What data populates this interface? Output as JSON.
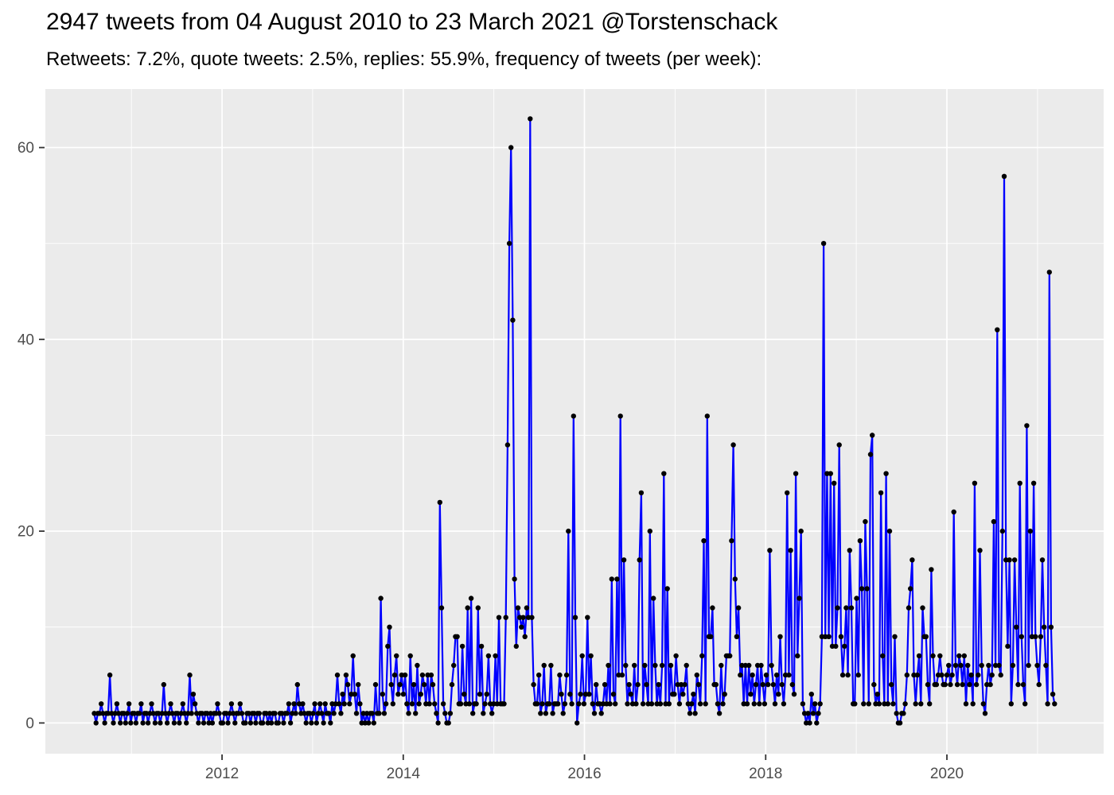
{
  "title": "2947 tweets from 04 August 2010 to 23 March 2021 @Torstenschack",
  "subtitle": "Retweets: 7.2%, quote tweets: 2.5%, replies: 55.9%, frequency of tweets (per week):",
  "colors": {
    "background": "#FFFFFF",
    "panel": "#EBEBEB",
    "grid": "#FFFFFF",
    "line": "#0000FF",
    "point": "#000000",
    "axis_text": "#4D4D4D",
    "tick_mark": "#333333",
    "title_text": "#000000"
  },
  "chart_data": {
    "type": "line",
    "title": "2947 tweets from 04 August 2010 to 23 March 2021 @Torstenschack",
    "subtitle": "Retweets: 7.2%, quote tweets: 2.5%, replies: 55.9%, frequency of tweets (per week):",
    "series_name": "tweets-per-week",
    "xlabel": "",
    "ylabel": "",
    "grid": true,
    "legend": "none",
    "x_ticks": [
      2012,
      2014,
      2016,
      2018,
      2020
    ],
    "x_minor_ticks": [
      2011,
      2013,
      2015,
      2017,
      2019,
      2021
    ],
    "y_ticks": [
      0,
      20,
      40,
      60
    ],
    "y_minor_ticks": [
      10,
      30,
      50
    ],
    "xlim": [
      2010.05,
      2021.73
    ],
    "ylim": [
      -3.2,
      66.1
    ],
    "x_start_year": 2010.59,
    "x_step_years": 0.019165,
    "values": [
      1,
      0,
      1,
      1,
      2,
      1,
      0,
      1,
      1,
      5,
      1,
      0,
      1,
      2,
      1,
      0,
      1,
      1,
      0,
      1,
      2,
      0,
      1,
      1,
      0,
      1,
      1,
      2,
      0,
      1,
      1,
      0,
      1,
      2,
      1,
      0,
      1,
      1,
      0,
      1,
      4,
      1,
      0,
      1,
      2,
      1,
      0,
      1,
      1,
      0,
      1,
      2,
      1,
      0,
      1,
      5,
      1,
      3,
      2,
      1,
      0,
      1,
      1,
      0,
      1,
      1,
      0,
      1,
      0,
      1,
      1,
      2,
      1,
      0,
      0,
      1,
      1,
      0,
      1,
      2,
      1,
      0,
      1,
      1,
      2,
      1,
      0,
      0,
      1,
      1,
      0,
      1,
      1,
      0,
      1,
      1,
      0,
      0,
      1,
      1,
      0,
      1,
      0,
      1,
      1,
      0,
      0,
      1,
      1,
      0,
      1,
      1,
      2,
      0,
      1,
      2,
      1,
      4,
      2,
      1,
      2,
      1,
      0,
      1,
      1,
      0,
      1,
      2,
      0,
      1,
      2,
      1,
      0,
      2,
      1,
      1,
      0,
      2,
      1,
      2,
      5,
      2,
      1,
      3,
      2,
      5,
      4,
      2,
      3,
      7,
      3,
      1,
      4,
      2,
      0,
      1,
      0,
      1,
      0,
      1,
      1,
      0,
      4,
      1,
      1,
      13,
      3,
      1,
      2,
      8,
      10,
      4,
      2,
      5,
      7,
      3,
      4,
      5,
      3,
      5,
      2,
      1,
      7,
      2,
      4,
      1,
      6,
      2,
      3,
      5,
      4,
      2,
      5,
      2,
      5,
      4,
      2,
      1,
      0,
      23,
      12,
      2,
      1,
      0,
      0,
      1,
      4,
      6,
      9,
      9,
      2,
      2,
      8,
      3,
      2,
      12,
      2,
      13,
      1,
      2,
      2,
      12,
      3,
      8,
      1,
      2,
      3,
      7,
      2,
      1,
      2,
      7,
      2,
      11,
      2,
      2,
      2,
      11,
      29,
      50,
      60,
      42,
      15,
      8,
      12,
      11,
      10,
      11,
      9,
      12,
      11,
      63,
      11,
      4,
      2,
      2,
      5,
      1,
      2,
      6,
      1,
      2,
      2,
      6,
      1,
      2,
      2,
      2,
      5,
      3,
      1,
      2,
      5,
      20,
      3,
      2,
      32,
      11,
      0,
      2,
      3,
      7,
      2,
      3,
      11,
      3,
      7,
      2,
      1,
      4,
      2,
      2,
      1,
      2,
      4,
      2,
      6,
      2,
      15,
      3,
      2,
      15,
      5,
      32,
      5,
      17,
      6,
      2,
      4,
      3,
      2,
      6,
      2,
      4,
      17,
      24,
      2,
      6,
      4,
      2,
      20,
      2,
      13,
      6,
      2,
      4,
      2,
      6,
      26,
      2,
      14,
      2,
      6,
      3,
      3,
      7,
      4,
      2,
      4,
      3,
      4,
      6,
      2,
      1,
      2,
      3,
      1,
      5,
      4,
      2,
      7,
      19,
      2,
      32,
      9,
      9,
      12,
      4,
      4,
      2,
      1,
      6,
      2,
      3,
      7,
      7,
      7,
      19,
      29,
      15,
      9,
      12,
      5,
      6,
      2,
      6,
      2,
      6,
      3,
      5,
      2,
      4,
      6,
      2,
      6,
      4,
      2,
      5,
      4,
      18,
      6,
      4,
      2,
      5,
      3,
      9,
      4,
      2,
      5,
      24,
      5,
      18,
      4,
      3,
      26,
      7,
      13,
      20,
      2,
      1,
      0,
      1,
      0,
      3,
      1,
      2,
      0,
      1,
      2,
      9,
      50,
      9,
      26,
      9,
      26,
      8,
      25,
      8,
      12,
      29,
      9,
      5,
      8,
      12,
      5,
      18,
      12,
      2,
      2,
      13,
      5,
      19,
      14,
      2,
      21,
      14,
      2,
      28,
      30,
      4,
      2,
      3,
      2,
      24,
      7,
      2,
      26,
      2,
      20,
      4,
      2,
      9,
      1,
      0,
      0,
      1,
      1,
      2,
      5,
      12,
      14,
      17,
      5,
      2,
      5,
      7,
      2,
      12,
      9,
      9,
      4,
      2,
      16,
      7,
      4,
      4,
      5,
      7,
      5,
      4,
      4,
      5,
      6,
      4,
      5,
      22,
      6,
      4,
      7,
      6,
      4,
      7,
      2,
      6,
      4,
      5,
      2,
      25,
      4,
      5,
      18,
      6,
      2,
      1,
      4,
      6,
      4,
      5,
      21,
      6,
      41,
      6,
      5,
      20,
      57,
      17,
      8,
      17,
      2,
      6,
      17,
      10,
      4,
      25,
      9,
      4,
      2,
      31,
      6,
      20,
      9,
      25,
      9,
      6,
      4,
      9,
      17,
      10,
      6,
      2,
      47,
      10,
      3,
      2
    ]
  }
}
